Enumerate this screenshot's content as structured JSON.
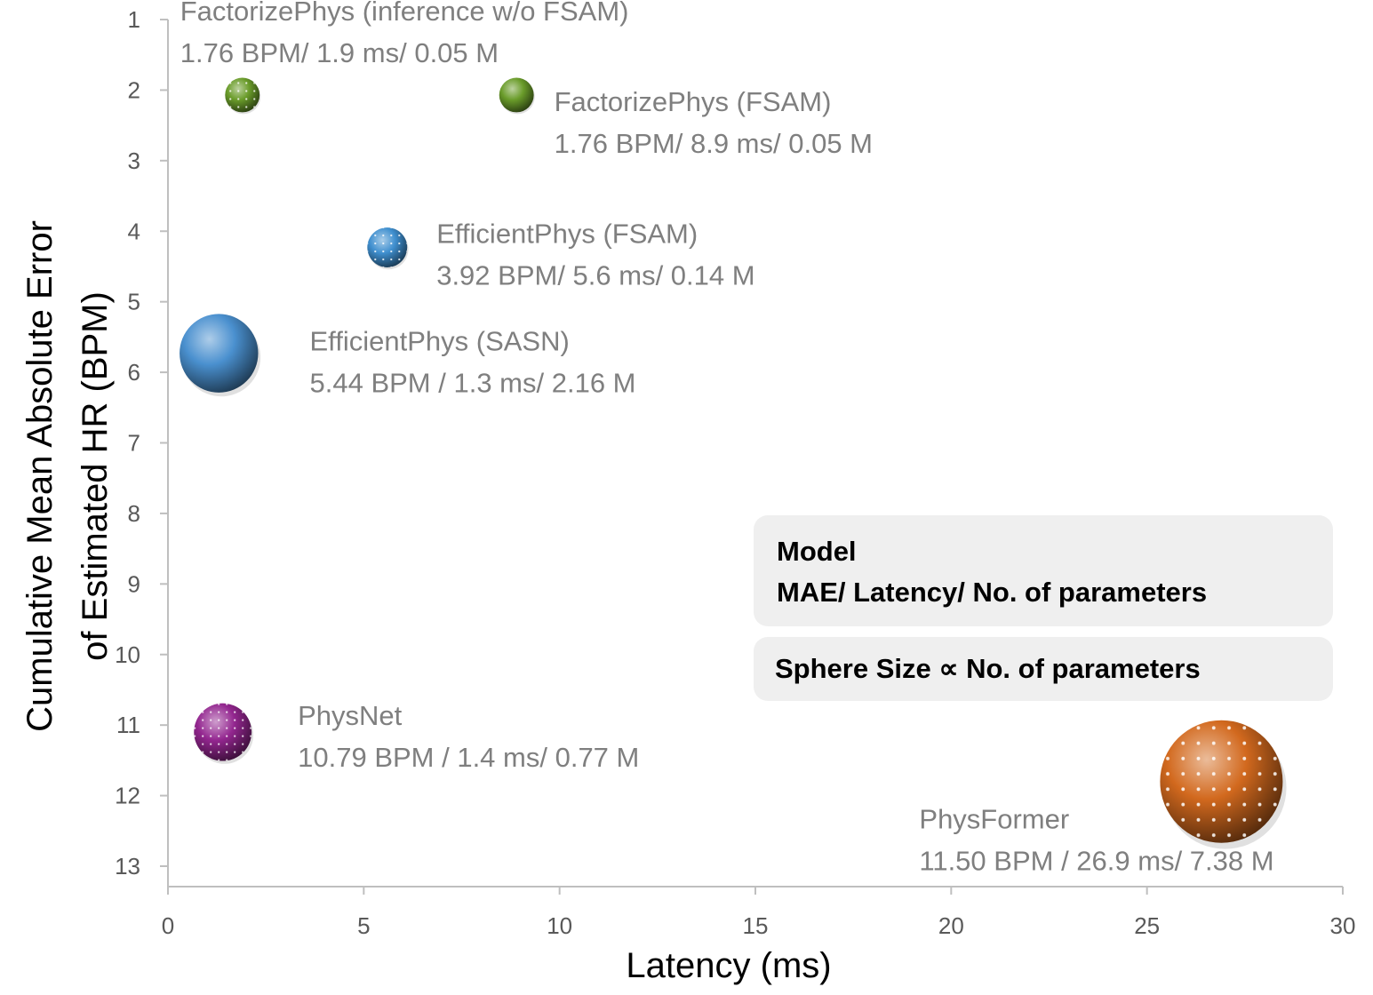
{
  "chart_data": {
    "type": "scatter",
    "xlabel": "Latency (ms)",
    "ylabel_lines": [
      "Cumulative Mean Absolute Error",
      "of Estimated HR (BPM)"
    ],
    "xlim": [
      0,
      30
    ],
    "ylim": [
      1,
      13
    ],
    "y_reversed": true,
    "x_ticks": [
      0,
      5,
      10,
      15,
      20,
      25,
      30
    ],
    "y_ticks": [
      1,
      2,
      3,
      4,
      5,
      6,
      7,
      8,
      9,
      10,
      11,
      12,
      13
    ],
    "size_encoding": "No. of parameters",
    "points": [
      {
        "name": "FactorizePhys (inference w/o FSAM)",
        "stats": "1.76 BPM/ 1.9 ms/ 0.05 M",
        "x": 1.9,
        "y": 2.07,
        "params": 0.05,
        "color": "#6a9c2a",
        "pattern": true
      },
      {
        "name": "FactorizePhys (FSAM)",
        "stats": "1.76 BPM/ 8.9 ms/ 0.05 M",
        "x": 8.9,
        "y": 2.07,
        "params": 0.05,
        "color": "#6a9c2a",
        "pattern": false
      },
      {
        "name": "EfficientPhys (FSAM)",
        "stats": "3.92 BPM/ 5.6 ms/ 0.14 M",
        "x": 5.6,
        "y": 4.23,
        "params": 0.14,
        "color": "#3f8fcf",
        "pattern": true
      },
      {
        "name": "EfficientPhys (SASN)",
        "stats": "5.44 BPM / 1.3 ms/ 2.16 M",
        "x": 1.3,
        "y": 5.73,
        "params": 2.16,
        "color": "#4a90cf",
        "pattern": false
      },
      {
        "name": "PhysNet",
        "stats": "10.79 BPM / 1.4 ms/ 0.77 M",
        "x": 1.4,
        "y": 11.1,
        "params": 0.77,
        "color": "#93268f",
        "pattern": true
      },
      {
        "name": "PhysFormer",
        "stats": "11.50 BPM / 26.9 ms/ 7.38 M",
        "x": 26.9,
        "y": 11.8,
        "params": 7.38,
        "color": "#d2691e",
        "pattern": true
      }
    ]
  },
  "legend": {
    "line1": "Model",
    "line2": "MAE/ Latency/ No. of parameters",
    "size_note": "Sphere Size ∝ No. of parameters"
  }
}
